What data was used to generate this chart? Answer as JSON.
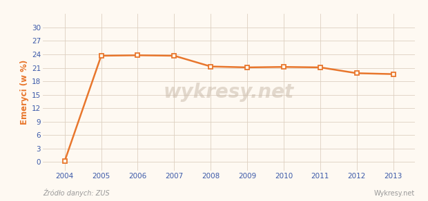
{
  "years": [
    2004,
    2005,
    2006,
    2007,
    2008,
    2009,
    2010,
    2011,
    2012,
    2013
  ],
  "values": [
    0.2,
    23.7,
    23.8,
    23.7,
    21.3,
    21.1,
    21.2,
    21.1,
    19.8,
    19.6
  ],
  "line_color": "#E8762C",
  "marker_facecolor": "#FFF5E8",
  "marker_edgecolor": "#E8762C",
  "bg_color": "#FEF9F2",
  "grid_color": "#DDD0C0",
  "ylabel": "Emeryci (w %)",
  "ylabel_color": "#E8762C",
  "tick_color": "#3A58A8",
  "source_text": "Źródło danych: ZUS",
  "watermark_text": "Wykresy.net",
  "watermark_chart": "wykresy.net",
  "yticks": [
    0,
    3,
    6,
    9,
    12,
    15,
    18,
    21,
    24,
    27,
    30
  ],
  "ylim": [
    -2.0,
    33.0
  ],
  "xlim": [
    2003.4,
    2013.6
  ]
}
